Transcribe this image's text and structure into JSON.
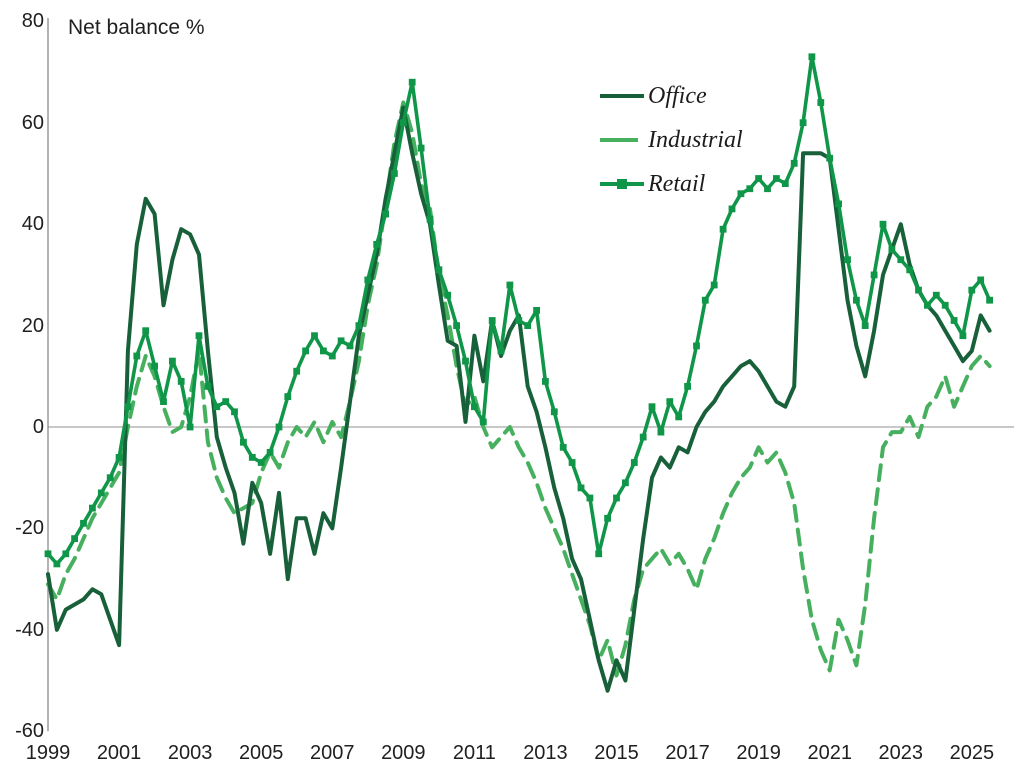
{
  "chart_data": {
    "type": "line",
    "title": "Net balance %",
    "x_start_year": 1999,
    "points_per_year": 4,
    "x_tick_labels": [
      "1999",
      "2001",
      "2003",
      "2005",
      "2007",
      "2009",
      "2011",
      "2013",
      "2015",
      "2017",
      "2019",
      "2021",
      "2023",
      "2025"
    ],
    "y_ticks": [
      80,
      60,
      40,
      20,
      0,
      -20,
      -40,
      -60
    ],
    "ylim": [
      -60,
      80
    ],
    "grid": "zero-line-only",
    "legend_position": "top-center-inside",
    "axis_color": "#8c8c8c",
    "zero_line_color": "#a8a8a8",
    "series": [
      {
        "name": "Office",
        "color": "#17603a",
        "style": "solid",
        "marker": "none",
        "values": [
          -29,
          -40,
          -36,
          -35,
          -34,
          -32,
          -33,
          -38,
          -43,
          15,
          36,
          45,
          42,
          24,
          33,
          39,
          38,
          34,
          15,
          -2,
          -8,
          -13,
          -23,
          -11,
          -15,
          -25,
          -13,
          -30,
          -18,
          -18,
          -25,
          -17,
          -20,
          -8,
          5,
          18,
          26,
          34,
          45,
          54,
          63,
          54,
          46,
          40,
          28,
          17,
          16,
          1,
          18,
          9,
          21,
          14,
          19,
          22,
          8,
          3,
          -4,
          -12,
          -18,
          -26,
          -30,
          -38,
          -46,
          -52,
          -46,
          -50,
          -36,
          -22,
          -10,
          -6,
          -8,
          -4,
          -5,
          0,
          3,
          5,
          8,
          10,
          12,
          13,
          11,
          8,
          5,
          4,
          8,
          54,
          54,
          54,
          53,
          39,
          25,
          16,
          10,
          19,
          30,
          35,
          40,
          32,
          27,
          24,
          22,
          19,
          16,
          13,
          15,
          22,
          19
        ]
      },
      {
        "name": "Industrial",
        "color": "#47b05f",
        "style": "dashed",
        "marker": "none",
        "values": [
          -31,
          -34,
          -29,
          -26,
          -22,
          -18,
          -15,
          -12,
          -9,
          0,
          8,
          14,
          10,
          4,
          -1,
          0,
          6,
          15,
          -3,
          -10,
          -14,
          -17,
          -16,
          -15,
          -9,
          -5,
          -8,
          -3,
          0,
          -2,
          1,
          -3,
          1,
          -2,
          5,
          13,
          24,
          32,
          44,
          56,
          64,
          58,
          48,
          43,
          30,
          22,
          12,
          4,
          6,
          0,
          -4,
          -2,
          0,
          -4,
          -7,
          -11,
          -16,
          -20,
          -24,
          -29,
          -34,
          -39,
          -46,
          -42,
          -49,
          -43,
          -34,
          -28,
          -26,
          -24,
          -27,
          -25,
          -28,
          -32,
          -26,
          -22,
          -17,
          -13,
          -10,
          -8,
          -4,
          -7,
          -5,
          -9,
          -15,
          -28,
          -38,
          -44,
          -48,
          -38,
          -42,
          -47,
          -35,
          -18,
          -4,
          -1,
          -1,
          2,
          -2,
          4,
          6,
          10,
          4,
          8,
          12,
          14,
          12
        ]
      },
      {
        "name": "Retail",
        "color": "#0f9648",
        "style": "solid",
        "marker": "square",
        "values": [
          -25,
          -27,
          -25,
          -22,
          -19,
          -16,
          -13,
          -10,
          -6,
          4,
          14,
          19,
          12,
          5,
          13,
          9,
          0,
          18,
          8,
          4,
          5,
          3,
          -3,
          -6,
          -7,
          -5,
          0,
          6,
          11,
          15,
          18,
          15,
          14,
          17,
          16,
          20,
          29,
          36,
          42,
          50,
          60,
          68,
          55,
          41,
          31,
          26,
          20,
          13,
          4,
          1,
          21,
          15,
          28,
          21,
          20,
          23,
          9,
          3,
          -4,
          -7,
          -12,
          -14,
          -25,
          -18,
          -14,
          -11,
          -7,
          -2,
          4,
          -1,
          5,
          2,
          8,
          16,
          25,
          28,
          39,
          43,
          46,
          47,
          49,
          47,
          49,
          48,
          52,
          60,
          73,
          64,
          53,
          44,
          33,
          25,
          20,
          30,
          40,
          35,
          33,
          31,
          27,
          24,
          26,
          24,
          21,
          18,
          27,
          29,
          25
        ]
      }
    ]
  }
}
